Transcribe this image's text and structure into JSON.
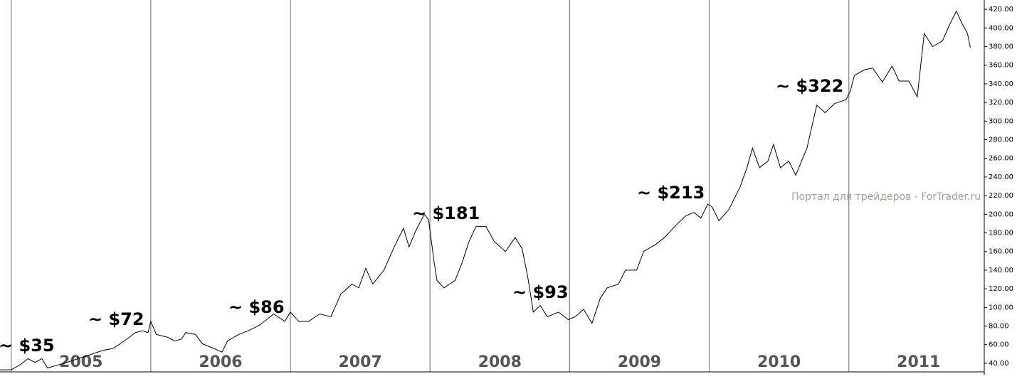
{
  "chart_data": {
    "type": "line",
    "watermark": "Портал для трейдеров - ForTrader.ru",
    "annotations": [
      "~ $35",
      "~ $72",
      "~ $86",
      "~ $181",
      "~ $93",
      "~ $213",
      "~ $322"
    ],
    "x": [
      2004.92,
      2005.0,
      2005.07,
      2005.12,
      2005.17,
      2005.22,
      2005.26,
      2005.33,
      2005.4,
      2005.48,
      2005.58,
      2005.66,
      2005.73,
      2005.81,
      2005.89,
      2005.94,
      2005.98,
      2006.0,
      2006.04,
      2006.12,
      2006.17,
      2006.22,
      2006.25,
      2006.32,
      2006.37,
      2006.45,
      2006.51,
      2006.55,
      2006.63,
      2006.7,
      2006.78,
      2006.88,
      2006.96,
      2007.0,
      2007.06,
      2007.13,
      2007.21,
      2007.29,
      2007.36,
      2007.44,
      2007.49,
      2007.54,
      2007.59,
      2007.67,
      2007.75,
      2007.81,
      2007.85,
      2007.9,
      2007.96,
      2007.99,
      2008.03,
      2008.05,
      2008.1,
      2008.18,
      2008.23,
      2008.28,
      2008.33,
      2008.4,
      2008.46,
      2008.54,
      2008.61,
      2008.66,
      2008.7,
      2008.74,
      2008.79,
      2008.84,
      2008.92,
      2008.99,
      2009.04,
      2009.1,
      2009.16,
      2009.22,
      2009.27,
      2009.35,
      2009.4,
      2009.48,
      2009.53,
      2009.61,
      2009.68,
      2009.76,
      2009.83,
      2009.89,
      2009.94,
      2009.99,
      2010.02,
      2010.07,
      2010.14,
      2010.22,
      2010.27,
      2010.31,
      2010.36,
      2010.42,
      2010.46,
      2010.51,
      2010.57,
      2010.62,
      2010.7,
      2010.77,
      2010.83,
      2010.9,
      2010.98,
      2011.01,
      2011.04,
      2011.11,
      2011.17,
      2011.24,
      2011.31,
      2011.36,
      2011.43,
      2011.49,
      2011.54,
      2011.6,
      2011.67,
      2011.72,
      2011.77,
      2011.81,
      2011.85,
      2011.87
    ],
    "series": [
      {
        "color": "#000000",
        "values": [
          33,
          33,
          39,
          45,
          41,
          45,
          35,
          38,
          41,
          45,
          50,
          54,
          56,
          64,
          73,
          75,
          73,
          85,
          71,
          68,
          64,
          66,
          73,
          71,
          61,
          56,
          52,
          64,
          71,
          75,
          81,
          93,
          85,
          95,
          85,
          85,
          93,
          90,
          114,
          125,
          121,
          142,
          125,
          140,
          167,
          185,
          165,
          183,
          200,
          194,
          148,
          129,
          121,
          129,
          148,
          171,
          187,
          187,
          171,
          160,
          175,
          163,
          133,
          95,
          102,
          90,
          95,
          87,
          90,
          98,
          83,
          110,
          121,
          125,
          140,
          140,
          160,
          167,
          175,
          188,
          198,
          202,
          196,
          211,
          208,
          193,
          205,
          229,
          250,
          271,
          250,
          257,
          275,
          250,
          257,
          242,
          271,
          317,
          309,
          319,
          323,
          332,
          349,
          355,
          357,
          342,
          359,
          343,
          343,
          326,
          394,
          380,
          386,
          403,
          418,
          405,
          394,
          379
        ]
      }
    ],
    "xlim": [
      2004.92,
      2011.97
    ],
    "xticks": [
      2005,
      2006,
      2007,
      2008,
      2009,
      2010,
      2011
    ],
    "ylim": [
      30.8,
      430
    ],
    "yticks": [
      {
        "value": 40,
        "label": "40.00"
      },
      {
        "value": 60,
        "label": "60.00"
      },
      {
        "value": 80,
        "label": "80.00"
      },
      {
        "value": 100,
        "label": "100.00"
      },
      {
        "value": 120,
        "label": "120.00"
      },
      {
        "value": 140,
        "label": "140.00"
      },
      {
        "value": 160,
        "label": "160.00"
      },
      {
        "value": 180,
        "label": "180.00"
      },
      {
        "value": 200,
        "label": "200.00"
      },
      {
        "value": 220,
        "label": "220.00"
      },
      {
        "value": 240,
        "label": "240.00"
      },
      {
        "value": 260,
        "label": "260.00"
      },
      {
        "value": 280,
        "label": "280.00"
      },
      {
        "value": 300,
        "label": "300.00"
      },
      {
        "value": 320,
        "label": "320.00"
      },
      {
        "value": 340,
        "label": "340.00"
      },
      {
        "value": 360,
        "label": "360.00"
      },
      {
        "value": 380,
        "label": "380.00"
      },
      {
        "value": 400,
        "label": "400.00"
      },
      {
        "value": 420,
        "label": "420.00"
      }
    ],
    "grid_x": true,
    "grid_color": "#888888"
  }
}
